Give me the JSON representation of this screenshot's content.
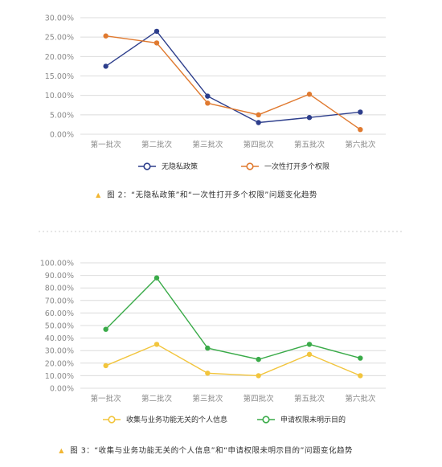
{
  "chart_data": [
    {
      "type": "line",
      "categories": [
        "第一批次",
        "第二批次",
        "第三批次",
        "第四批次",
        "第五批次",
        "第六批次"
      ],
      "ylim": [
        0,
        30
      ],
      "yticks": [
        "0.00%",
        "5.00%",
        "10.00%",
        "15.00%",
        "20.00%",
        "25.00%",
        "30.00%"
      ],
      "grid": true,
      "legend_placement": "bottom",
      "series": [
        {
          "name": "无隐私政策",
          "color": "#2d3e8c",
          "values": [
            17.5,
            26.5,
            9.8,
            3.0,
            4.3,
            5.7
          ]
        },
        {
          "name": "一次性打开多个权限",
          "color": "#e07a30",
          "values": [
            25.3,
            23.5,
            8.0,
            5.0,
            10.3,
            1.2
          ]
        }
      ],
      "caption_marker": "▲",
      "caption": "图 2：“无隐私政策”和“一次性打开多个权限”问题变化趋势"
    },
    {
      "type": "line",
      "categories": [
        "第一批次",
        "第二批次",
        "第三批次",
        "第四批次",
        "第五批次",
        "第六批次"
      ],
      "ylim": [
        0,
        100
      ],
      "yticks": [
        "0.00%",
        "10.00%",
        "20.00%",
        "30.00%",
        "40.00%",
        "50.00%",
        "60.00%",
        "70.00%",
        "80.00%",
        "90.00%",
        "100.00%"
      ],
      "grid": true,
      "legend_placement": "bottom",
      "series": [
        {
          "name": "收集与业务功能无关的个人信息",
          "color": "#f2c53d",
          "values": [
            18,
            35,
            12,
            10,
            27,
            10
          ]
        },
        {
          "name": "申请权限未明示目的",
          "color": "#3aab49",
          "values": [
            47,
            88,
            32,
            23,
            35,
            24
          ]
        }
      ],
      "caption_marker": "▲",
      "caption": "图 3：“收集与业务功能无关的个人信息”和“申请权限未明示目的”问题变化趋势"
    }
  ],
  "colors": {
    "grid": "#dcdcdc",
    "tick_text": "#8a8a8a",
    "caption_marker": "#f2b632",
    "divider": "#cccccc"
  }
}
